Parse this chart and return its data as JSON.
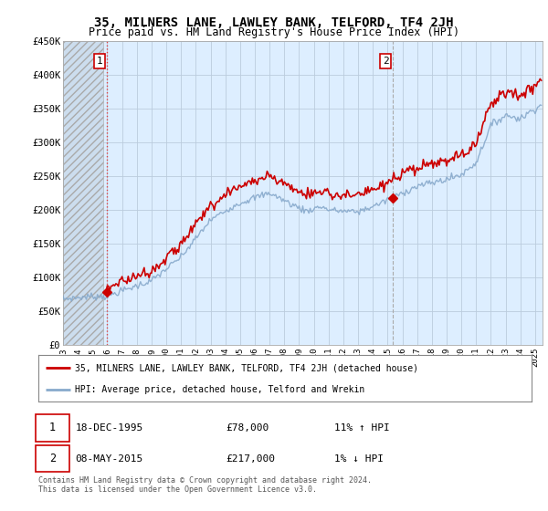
{
  "title": "35, MILNERS LANE, LAWLEY BANK, TELFORD, TF4 2JH",
  "subtitle": "Price paid vs. HM Land Registry's House Price Index (HPI)",
  "legend_line1": "35, MILNERS LANE, LAWLEY BANK, TELFORD, TF4 2JH (detached house)",
  "legend_line2": "HPI: Average price, detached house, Telford and Wrekin",
  "transaction1_date": "18-DEC-1995",
  "transaction1_price": "£78,000",
  "transaction1_hpi": "11% ↑ HPI",
  "transaction2_date": "08-MAY-2015",
  "transaction2_price": "£217,000",
  "transaction2_hpi": "1% ↓ HPI",
  "footer": "Contains HM Land Registry data © Crown copyright and database right 2024.\nThis data is licensed under the Open Government Licence v3.0.",
  "ylim": [
    0,
    450000
  ],
  "yticks": [
    0,
    50000,
    100000,
    150000,
    200000,
    250000,
    300000,
    350000,
    400000,
    450000
  ],
  "ytick_labels": [
    "£0",
    "£50K",
    "£100K",
    "£150K",
    "£200K",
    "£250K",
    "£300K",
    "£350K",
    "£400K",
    "£450K"
  ],
  "grid_color": "#bbccdd",
  "house_color": "#cc0000",
  "hpi_color": "#88aacc",
  "chart_bg_color": "#ddeeff",
  "hatch_color": "#bbbbbb",
  "transaction1_x": 1995.96,
  "transaction1_y": 78000,
  "transaction2_x": 2015.36,
  "transaction2_y": 217000,
  "xmin": 1993,
  "xmax": 2025.5
}
